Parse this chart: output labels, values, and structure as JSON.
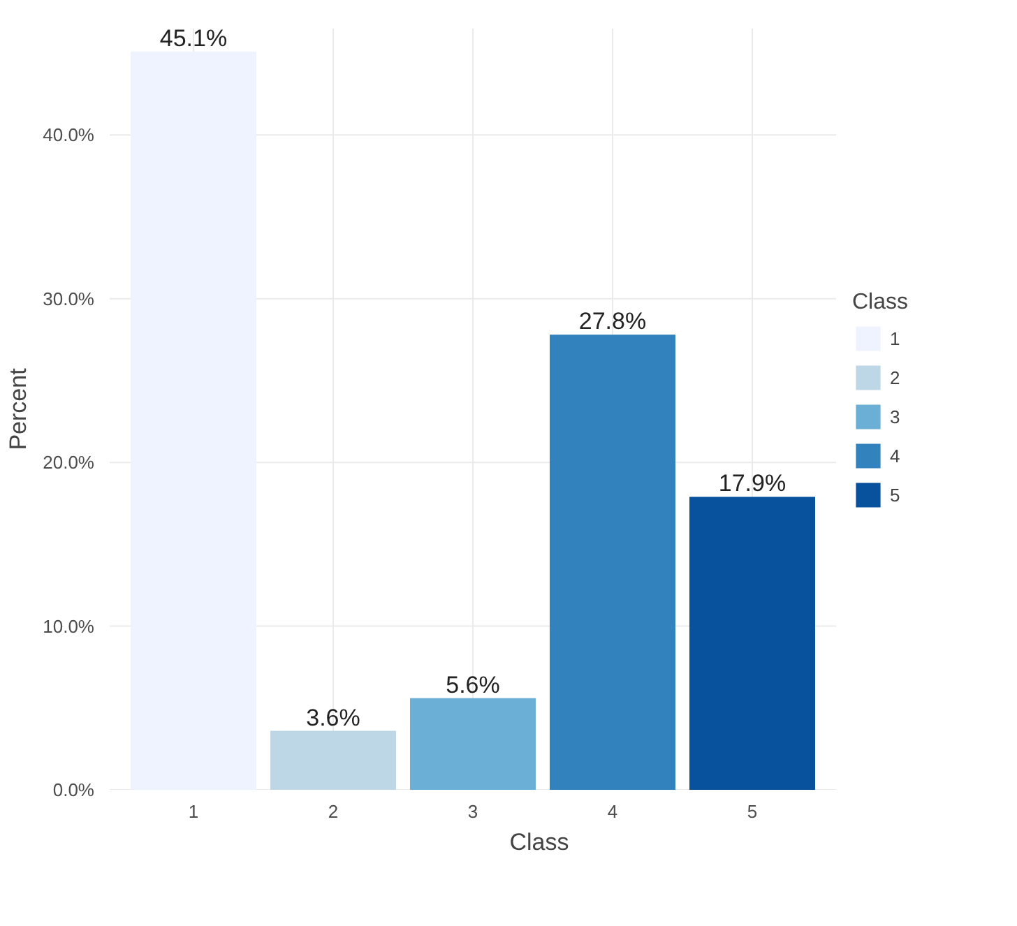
{
  "chart_data": {
    "type": "bar",
    "xlabel": "Class",
    "ylabel": "Percent",
    "legend_title": "Class",
    "categories": [
      "1",
      "2",
      "3",
      "4",
      "5"
    ],
    "series": [
      {
        "name": "1",
        "color": "#eff3ff",
        "values": [
          45.1,
          null,
          null,
          null,
          null
        ],
        "value_labels": [
          "45.1%",
          null,
          null,
          null,
          null
        ]
      },
      {
        "name": "2",
        "color": "#bdd7e7",
        "values": [
          null,
          3.6,
          null,
          null,
          null
        ],
        "value_labels": [
          null,
          "3.6%",
          null,
          null,
          null
        ]
      },
      {
        "name": "3",
        "color": "#6baed6",
        "values": [
          null,
          null,
          5.6,
          null,
          null
        ],
        "value_labels": [
          null,
          null,
          "5.6%",
          null,
          null
        ]
      },
      {
        "name": "4",
        "color": "#3182bd",
        "values": [
          null,
          null,
          null,
          27.8,
          null
        ],
        "value_labels": [
          null,
          null,
          null,
          "27.8%",
          null
        ]
      },
      {
        "name": "5",
        "color": "#08519c",
        "values": [
          null,
          null,
          null,
          null,
          17.9
        ],
        "value_labels": [
          null,
          null,
          null,
          null,
          "17.9%"
        ]
      }
    ],
    "ylim": [
      0,
      46.5
    ],
    "yticks": [
      {
        "value": 0,
        "label": "0.0%"
      },
      {
        "value": 10,
        "label": "10.0%"
      },
      {
        "value": 20,
        "label": "20.0%"
      },
      {
        "value": 30,
        "label": "30.0%"
      },
      {
        "value": 40,
        "label": "40.0%"
      }
    ],
    "grid": true,
    "legend": "right"
  }
}
